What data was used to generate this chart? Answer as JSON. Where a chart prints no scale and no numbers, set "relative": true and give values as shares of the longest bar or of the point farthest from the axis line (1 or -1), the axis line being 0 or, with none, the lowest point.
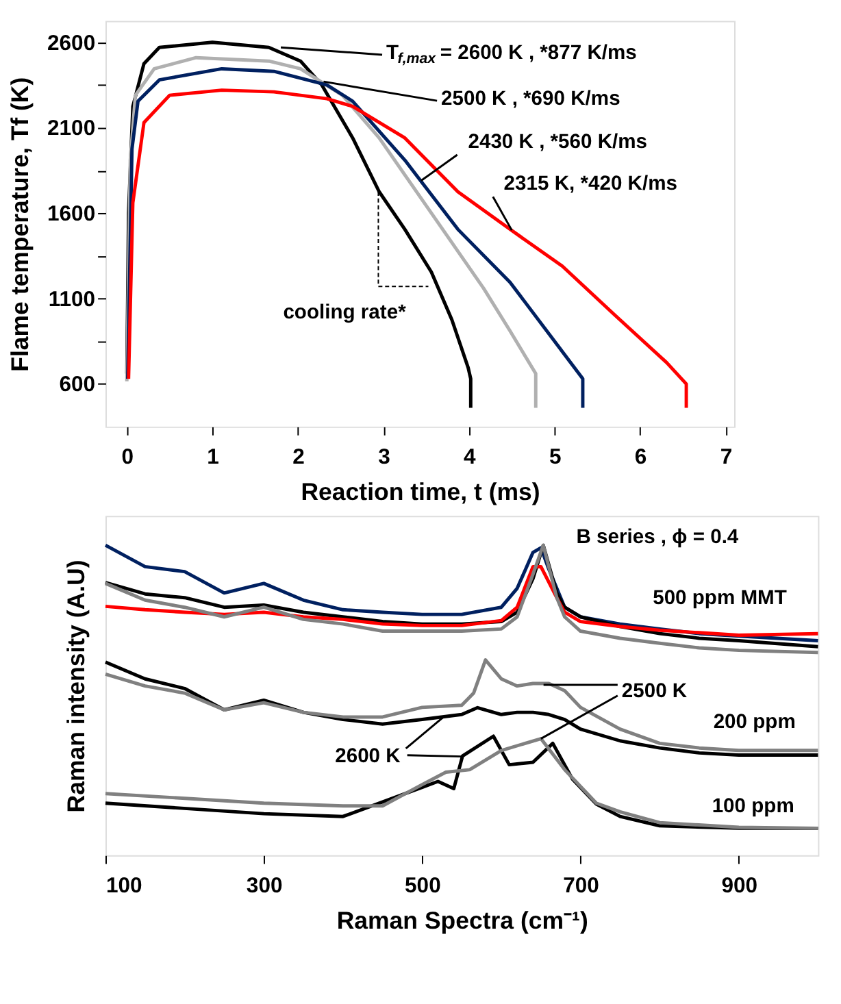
{
  "chart_data": [
    {
      "type": "line",
      "xlabel": "Reaction time, t (ms)",
      "ylabel": "Flame temperature, Tf (K)",
      "xlim": [
        -0.25,
        7.1
      ],
      "ylim": [
        350,
        2725
      ],
      "xticks": [
        0,
        1,
        2,
        3,
        4,
        5,
        6,
        7
      ],
      "yticks": [
        600,
        {
          "value": 850,
          "label": null
        },
        1100,
        {
          "value": 1350,
          "label": null
        },
        1600,
        {
          "value": 1850,
          "label": null
        },
        2100,
        {
          "value": 2350,
          "label": null
        },
        2600
      ],
      "grid": false,
      "legend": false,
      "marker": "none",
      "line_style": "solid",
      "series": [
        {
          "color": "#000000",
          "x": [
            0,
            0.02,
            0.07,
            0.2,
            0.38,
            1.0,
            1.66,
            2.03,
            2.28,
            2.64,
            2.95,
            3.25,
            3.56,
            3.8,
            3.99,
            4.02,
            4.02
          ],
          "values": [
            660,
            1600,
            2225,
            2475,
            2570,
            2600,
            2570,
            2490,
            2350,
            2040,
            1725,
            1505,
            1255,
            975,
            695,
            630,
            460
          ]
        },
        {
          "color": "#b0b0b0",
          "x": [
            0,
            0.04,
            0.1,
            0.32,
            0.81,
            1.66,
            2.03,
            2.52,
            2.95,
            3.56,
            4.17,
            4.48,
            4.78,
            4.78
          ],
          "values": [
            615,
            1910,
            2290,
            2445,
            2510,
            2490,
            2445,
            2290,
            2040,
            1600,
            1160,
            910,
            660,
            460
          ]
        },
        {
          "color": "#002060",
          "x": [
            0.01,
            0.06,
            0.13,
            0.38,
            1.11,
            1.72,
            2.34,
            2.64,
            3.25,
            3.87,
            4.48,
            5.09,
            5.33,
            5.33
          ],
          "values": [
            630,
            1975,
            2255,
            2380,
            2445,
            2430,
            2350,
            2255,
            1910,
            1505,
            1195,
            790,
            630,
            460
          ]
        },
        {
          "color": "#ff0000",
          "x": [
            0.02,
            0.07,
            0.2,
            0.5,
            1.11,
            1.72,
            2.34,
            2.64,
            3.25,
            3.87,
            4.48,
            5.09,
            5.7,
            6.31,
            6.54,
            6.54
          ],
          "values": [
            630,
            1660,
            2130,
            2290,
            2320,
            2310,
            2270,
            2225,
            2040,
            1725,
            1505,
            1290,
            1005,
            725,
            600,
            460
          ]
        }
      ],
      "annotations": [
        {
          "text": "T$_{f,max}$ = 2600 K ,  *877 K/ms",
          "x": 1.8,
          "y": 2570
        },
        {
          "text": "2500 K ,  *690 K/ms",
          "x": 2.3,
          "y": 2370
        },
        {
          "text": "2430 K ,  *560 K/ms",
          "x": 3.44,
          "y": 1790
        },
        {
          "text": "2315 K, *420 K/ms",
          "x": 4.5,
          "y": 1500
        },
        {
          "text": "cooling rate*",
          "x": 2.94,
          "y": 1725
        }
      ]
    },
    {
      "type": "line",
      "xlabel": "Raman Spectra (cm⁻¹)",
      "ylabel": "Raman intensity (A.U)",
      "relative": true,
      "xlim": [
        100,
        1000
      ],
      "xticks": [
        100,
        300,
        500,
        700,
        900
      ],
      "tick_labels": "x",
      "grid": false,
      "legend": false,
      "marker": "none",
      "line_style": "solid",
      "series": [
        {
          "color": "#002060",
          "x": [
            100,
            150,
            200,
            250,
            300,
            350,
            400,
            450,
            500,
            550,
            600,
            620,
            640,
            650,
            660,
            680,
            700,
            750,
            800,
            850,
            900,
            1000
          ],
          "values": [
            1.0,
            0.931,
            0.915,
            0.846,
            0.877,
            0.823,
            0.792,
            0.784,
            0.777,
            0.777,
            0.8,
            0.861,
            0.977,
            0.992,
            0.923,
            0.8,
            0.769,
            0.746,
            0.73,
            0.715,
            0.707,
            0.692
          ]
        },
        {
          "color": "#000000",
          "x": [
            100,
            150,
            200,
            250,
            300,
            350,
            400,
            450,
            500,
            550,
            600,
            620,
            640,
            653,
            670,
            680,
            700,
            750,
            800,
            850,
            900,
            1000
          ],
          "values": [
            0.88,
            0.843,
            0.831,
            0.8,
            0.807,
            0.784,
            0.769,
            0.754,
            0.746,
            0.746,
            0.754,
            0.784,
            0.892,
            1.0,
            0.846,
            0.8,
            0.769,
            0.738,
            0.715,
            0.7,
            0.692,
            0.673
          ]
        },
        {
          "color": "#ff0000",
          "x": [
            100,
            150,
            200,
            250,
            300,
            350,
            400,
            450,
            500,
            550,
            600,
            620,
            640,
            650,
            670,
            680,
            700,
            750,
            800,
            850,
            900,
            1000
          ],
          "values": [
            0.803,
            0.792,
            0.784,
            0.777,
            0.784,
            0.769,
            0.761,
            0.746,
            0.741,
            0.741,
            0.757,
            0.8,
            0.931,
            0.931,
            0.831,
            0.784,
            0.754,
            0.738,
            0.726,
            0.718,
            0.71,
            0.715
          ]
        },
        {
          "color": "#808080",
          "x": [
            100,
            150,
            200,
            250,
            300,
            350,
            400,
            450,
            500,
            550,
            600,
            620,
            640,
            653,
            670,
            680,
            700,
            750,
            800,
            850,
            900,
            1000
          ],
          "values": [
            0.877,
            0.823,
            0.8,
            0.769,
            0.8,
            0.761,
            0.746,
            0.723,
            0.723,
            0.723,
            0.73,
            0.769,
            0.907,
            1.0,
            0.831,
            0.769,
            0.723,
            0.7,
            0.684,
            0.669,
            0.661,
            0.654
          ]
        },
        {
          "color": "#000000",
          "x": [
            100,
            150,
            200,
            250,
            300,
            350,
            400,
            450,
            500,
            550,
            570,
            600,
            620,
            640,
            660,
            680,
            700,
            750,
            800,
            850,
            900,
            1000
          ],
          "values": [
            0.623,
            0.569,
            0.538,
            0.469,
            0.5,
            0.461,
            0.438,
            0.423,
            0.438,
            0.454,
            0.476,
            0.454,
            0.461,
            0.461,
            0.454,
            0.438,
            0.407,
            0.369,
            0.346,
            0.33,
            0.323,
            0.323
          ]
        },
        {
          "color": "#808080",
          "x": [
            100,
            150,
            200,
            250,
            300,
            350,
            400,
            450,
            500,
            550,
            565,
            580,
            600,
            620,
            640,
            660,
            680,
            700,
            750,
            800,
            850,
            900,
            1000
          ],
          "values": [
            0.584,
            0.546,
            0.523,
            0.469,
            0.492,
            0.461,
            0.446,
            0.446,
            0.477,
            0.484,
            0.523,
            0.63,
            0.569,
            0.546,
            0.554,
            0.554,
            0.531,
            0.477,
            0.407,
            0.361,
            0.346,
            0.338,
            0.338
          ]
        },
        {
          "color": "#000000",
          "x": [
            100,
            300,
            400,
            500,
            520,
            540,
            551,
            590,
            610,
            640,
            665,
            690,
            720,
            750,
            800,
            900,
            1000
          ],
          "values": [
            0.168,
            0.134,
            0.125,
            0.219,
            0.238,
            0.215,
            0.32,
            0.384,
            0.292,
            0.3,
            0.361,
            0.245,
            0.165,
            0.125,
            0.095,
            0.087,
            0.087
          ]
        },
        {
          "color": "#808080",
          "x": [
            100,
            300,
            400,
            450,
            500,
            530,
            560,
            600,
            650,
            680,
            720,
            750,
            800,
            900,
            1000
          ],
          "values": [
            0.199,
            0.168,
            0.159,
            0.159,
            0.228,
            0.268,
            0.276,
            0.338,
            0.376,
            0.276,
            0.168,
            0.14,
            0.105,
            0.09,
            0.087
          ]
        }
      ],
      "annotations": [
        "B series ,  ϕ = 0.4",
        "500 ppm MMT",
        "200 ppm",
        "100 ppm",
        {
          "text": "2500 K",
          "x": 650,
          "y": 0.376
        },
        {
          "text": "2600 K",
          "x": 527,
          "y": 0.446
        }
      ]
    }
  ]
}
